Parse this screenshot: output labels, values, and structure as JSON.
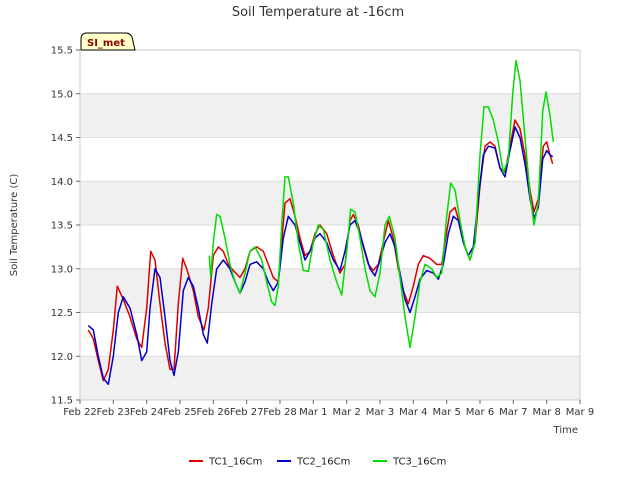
{
  "chart_data": {
    "type": "line",
    "title": "Soil Temperature at -16cm",
    "xlabel": "Time",
    "ylabel": "Soil Temperature (C)",
    "badge": "SI_met",
    "ylim": [
      11.5,
      15.5
    ],
    "y_ticks": [
      "11.5",
      "12.0",
      "12.5",
      "13.0",
      "13.5",
      "14.0",
      "14.5",
      "15.0",
      "15.5"
    ],
    "y_tick_values": [
      11.5,
      12.0,
      12.5,
      13.0,
      13.5,
      14.0,
      14.5,
      15.0,
      15.5
    ],
    "xlim": [
      0,
      15
    ],
    "x_ticks": [
      "Feb 22",
      "Feb 23",
      "Feb 24",
      "Feb 25",
      "Feb 26",
      "Feb 27",
      "Feb 28",
      "Mar 1",
      "Mar 2",
      "Mar 3",
      "Mar 4",
      "Mar 5",
      "Mar 6",
      "Mar 7",
      "Mar 8",
      "Mar 9"
    ],
    "grid": true,
    "legend_position": "bottom",
    "colors": {
      "band": "#f0f0f0",
      "grid": "#dcdcdc",
      "badge_bg": "#ffffcc"
    },
    "series": [
      {
        "name": "TC1_16Cm",
        "color": "#dd0000",
        "points": [
          [
            0.25,
            12.3
          ],
          [
            0.4,
            12.2
          ],
          [
            0.55,
            11.95
          ],
          [
            0.7,
            11.72
          ],
          [
            0.85,
            11.85
          ],
          [
            1.0,
            12.3
          ],
          [
            1.12,
            12.8
          ],
          [
            1.3,
            12.65
          ],
          [
            1.5,
            12.45
          ],
          [
            1.7,
            12.2
          ],
          [
            1.85,
            12.1
          ],
          [
            2.0,
            12.55
          ],
          [
            2.12,
            13.2
          ],
          [
            2.25,
            13.1
          ],
          [
            2.4,
            12.6
          ],
          [
            2.55,
            12.15
          ],
          [
            2.7,
            11.85
          ],
          [
            2.82,
            11.85
          ],
          [
            2.95,
            12.6
          ],
          [
            3.08,
            13.12
          ],
          [
            3.2,
            13.0
          ],
          [
            3.4,
            12.75
          ],
          [
            3.55,
            12.45
          ],
          [
            3.72,
            12.3
          ],
          [
            3.85,
            12.55
          ],
          [
            4.0,
            13.15
          ],
          [
            4.15,
            13.25
          ],
          [
            4.3,
            13.2
          ],
          [
            4.45,
            13.05
          ],
          [
            4.6,
            12.98
          ],
          [
            4.8,
            12.9
          ],
          [
            4.95,
            13.0
          ],
          [
            5.1,
            13.2
          ],
          [
            5.3,
            13.25
          ],
          [
            5.5,
            13.2
          ],
          [
            5.65,
            13.05
          ],
          [
            5.8,
            12.9
          ],
          [
            5.95,
            12.85
          ],
          [
            6.05,
            13.3
          ],
          [
            6.15,
            13.75
          ],
          [
            6.3,
            13.8
          ],
          [
            6.45,
            13.6
          ],
          [
            6.6,
            13.35
          ],
          [
            6.75,
            13.15
          ],
          [
            6.9,
            13.2
          ],
          [
            7.05,
            13.4
          ],
          [
            7.2,
            13.5
          ],
          [
            7.4,
            13.4
          ],
          [
            7.6,
            13.15
          ],
          [
            7.8,
            12.95
          ],
          [
            7.95,
            13.05
          ],
          [
            8.1,
            13.55
          ],
          [
            8.2,
            13.62
          ],
          [
            8.35,
            13.5
          ],
          [
            8.5,
            13.25
          ],
          [
            8.65,
            13.05
          ],
          [
            8.8,
            12.98
          ],
          [
            8.95,
            13.05
          ],
          [
            9.1,
            13.3
          ],
          [
            9.25,
            13.55
          ],
          [
            9.4,
            13.35
          ],
          [
            9.55,
            13.0
          ],
          [
            9.7,
            12.75
          ],
          [
            9.85,
            12.6
          ],
          [
            10.0,
            12.8
          ],
          [
            10.15,
            13.05
          ],
          [
            10.3,
            13.15
          ],
          [
            10.5,
            13.12
          ],
          [
            10.7,
            13.05
          ],
          [
            10.85,
            13.05
          ],
          [
            10.95,
            13.3
          ],
          [
            11.1,
            13.65
          ],
          [
            11.25,
            13.7
          ],
          [
            11.4,
            13.5
          ],
          [
            11.55,
            13.25
          ],
          [
            11.7,
            13.1
          ],
          [
            11.85,
            13.3
          ],
          [
            12.0,
            13.95
          ],
          [
            12.15,
            14.4
          ],
          [
            12.3,
            14.45
          ],
          [
            12.45,
            14.4
          ],
          [
            12.6,
            14.15
          ],
          [
            12.75,
            14.1
          ],
          [
            12.9,
            14.4
          ],
          [
            13.05,
            14.7
          ],
          [
            13.2,
            14.6
          ],
          [
            13.35,
            14.3
          ],
          [
            13.5,
            13.9
          ],
          [
            13.62,
            13.65
          ],
          [
            13.75,
            13.8
          ],
          [
            13.9,
            14.4
          ],
          [
            14.0,
            14.45
          ],
          [
            14.1,
            14.3
          ],
          [
            14.18,
            14.2
          ]
        ]
      },
      {
        "name": "TC2_16Cm",
        "color": "#0000cc",
        "points": [
          [
            0.25,
            12.35
          ],
          [
            0.4,
            12.3
          ],
          [
            0.55,
            12.0
          ],
          [
            0.7,
            11.75
          ],
          [
            0.85,
            11.68
          ],
          [
            1.0,
            12.0
          ],
          [
            1.15,
            12.5
          ],
          [
            1.3,
            12.68
          ],
          [
            1.5,
            12.55
          ],
          [
            1.7,
            12.25
          ],
          [
            1.85,
            11.95
          ],
          [
            2.0,
            12.05
          ],
          [
            2.1,
            12.55
          ],
          [
            2.25,
            13.0
          ],
          [
            2.4,
            12.9
          ],
          [
            2.55,
            12.45
          ],
          [
            2.7,
            11.95
          ],
          [
            2.82,
            11.78
          ],
          [
            2.95,
            12.05
          ],
          [
            3.1,
            12.75
          ],
          [
            3.25,
            12.9
          ],
          [
            3.4,
            12.8
          ],
          [
            3.55,
            12.55
          ],
          [
            3.7,
            12.25
          ],
          [
            3.82,
            12.15
          ],
          [
            3.95,
            12.6
          ],
          [
            4.1,
            13.0
          ],
          [
            4.3,
            13.1
          ],
          [
            4.5,
            13.0
          ],
          [
            4.65,
            12.85
          ],
          [
            4.8,
            12.72
          ],
          [
            4.95,
            12.85
          ],
          [
            5.1,
            13.05
          ],
          [
            5.3,
            13.08
          ],
          [
            5.5,
            13.0
          ],
          [
            5.65,
            12.85
          ],
          [
            5.8,
            12.75
          ],
          [
            5.95,
            12.85
          ],
          [
            6.1,
            13.35
          ],
          [
            6.25,
            13.6
          ],
          [
            6.45,
            13.5
          ],
          [
            6.6,
            13.3
          ],
          [
            6.75,
            13.1
          ],
          [
            6.9,
            13.2
          ],
          [
            7.05,
            13.35
          ],
          [
            7.2,
            13.4
          ],
          [
            7.4,
            13.3
          ],
          [
            7.6,
            13.1
          ],
          [
            7.8,
            12.98
          ],
          [
            7.95,
            13.2
          ],
          [
            8.1,
            13.5
          ],
          [
            8.25,
            13.55
          ],
          [
            8.4,
            13.4
          ],
          [
            8.55,
            13.2
          ],
          [
            8.7,
            13.0
          ],
          [
            8.85,
            12.92
          ],
          [
            9.0,
            13.1
          ],
          [
            9.15,
            13.3
          ],
          [
            9.3,
            13.4
          ],
          [
            9.45,
            13.25
          ],
          [
            9.6,
            12.95
          ],
          [
            9.75,
            12.65
          ],
          [
            9.9,
            12.5
          ],
          [
            10.05,
            12.68
          ],
          [
            10.2,
            12.88
          ],
          [
            10.4,
            12.98
          ],
          [
            10.6,
            12.95
          ],
          [
            10.75,
            12.88
          ],
          [
            10.9,
            13.05
          ],
          [
            11.05,
            13.4
          ],
          [
            11.2,
            13.6
          ],
          [
            11.35,
            13.55
          ],
          [
            11.5,
            13.3
          ],
          [
            11.65,
            13.15
          ],
          [
            11.8,
            13.25
          ],
          [
            11.95,
            13.8
          ],
          [
            12.1,
            14.3
          ],
          [
            12.25,
            14.4
          ],
          [
            12.45,
            14.38
          ],
          [
            12.6,
            14.15
          ],
          [
            12.75,
            14.05
          ],
          [
            12.9,
            14.35
          ],
          [
            13.05,
            14.62
          ],
          [
            13.2,
            14.5
          ],
          [
            13.35,
            14.2
          ],
          [
            13.5,
            13.8
          ],
          [
            13.62,
            13.58
          ],
          [
            13.75,
            13.7
          ],
          [
            13.88,
            14.25
          ],
          [
            14.0,
            14.35
          ],
          [
            14.1,
            14.3
          ],
          [
            14.18,
            14.28
          ]
        ]
      },
      {
        "name": "TC3_16Cm",
        "color": "#00dd00",
        "points": [
          [
            3.88,
            13.15
          ],
          [
            3.92,
            12.9
          ],
          [
            4.0,
            13.3
          ],
          [
            4.1,
            13.62
          ],
          [
            4.2,
            13.6
          ],
          [
            4.35,
            13.35
          ],
          [
            4.5,
            13.05
          ],
          [
            4.65,
            12.85
          ],
          [
            4.8,
            12.72
          ],
          [
            4.95,
            12.95
          ],
          [
            5.1,
            13.2
          ],
          [
            5.25,
            13.25
          ],
          [
            5.45,
            13.1
          ],
          [
            5.6,
            12.85
          ],
          [
            5.75,
            12.62
          ],
          [
            5.85,
            12.58
          ],
          [
            5.95,
            12.8
          ],
          [
            6.05,
            13.5
          ],
          [
            6.15,
            14.05
          ],
          [
            6.25,
            14.05
          ],
          [
            6.4,
            13.75
          ],
          [
            6.55,
            13.3
          ],
          [
            6.7,
            12.98
          ],
          [
            6.85,
            12.97
          ],
          [
            7.0,
            13.3
          ],
          [
            7.15,
            13.5
          ],
          [
            7.3,
            13.45
          ],
          [
            7.5,
            13.1
          ],
          [
            7.7,
            12.85
          ],
          [
            7.85,
            12.7
          ],
          [
            8.0,
            13.2
          ],
          [
            8.12,
            13.68
          ],
          [
            8.25,
            13.65
          ],
          [
            8.4,
            13.35
          ],
          [
            8.55,
            13.0
          ],
          [
            8.7,
            12.75
          ],
          [
            8.85,
            12.68
          ],
          [
            9.0,
            12.95
          ],
          [
            9.15,
            13.5
          ],
          [
            9.28,
            13.6
          ],
          [
            9.45,
            13.35
          ],
          [
            9.6,
            12.9
          ],
          [
            9.75,
            12.45
          ],
          [
            9.9,
            12.1
          ],
          [
            10.05,
            12.45
          ],
          [
            10.2,
            12.85
          ],
          [
            10.35,
            13.05
          ],
          [
            10.55,
            13.0
          ],
          [
            10.7,
            12.9
          ],
          [
            10.85,
            12.95
          ],
          [
            11.0,
            13.6
          ],
          [
            11.12,
            13.98
          ],
          [
            11.25,
            13.9
          ],
          [
            11.4,
            13.55
          ],
          [
            11.55,
            13.25
          ],
          [
            11.7,
            13.1
          ],
          [
            11.85,
            13.3
          ],
          [
            12.0,
            14.3
          ],
          [
            12.12,
            14.85
          ],
          [
            12.25,
            14.85
          ],
          [
            12.4,
            14.7
          ],
          [
            12.55,
            14.45
          ],
          [
            12.7,
            14.1
          ],
          [
            12.85,
            14.25
          ],
          [
            12.98,
            15.0
          ],
          [
            13.08,
            15.38
          ],
          [
            13.2,
            15.15
          ],
          [
            13.35,
            14.5
          ],
          [
            13.5,
            13.85
          ],
          [
            13.62,
            13.5
          ],
          [
            13.75,
            13.75
          ],
          [
            13.88,
            14.8
          ],
          [
            13.98,
            15.02
          ],
          [
            14.1,
            14.75
          ],
          [
            14.2,
            14.45
          ]
        ]
      }
    ]
  }
}
